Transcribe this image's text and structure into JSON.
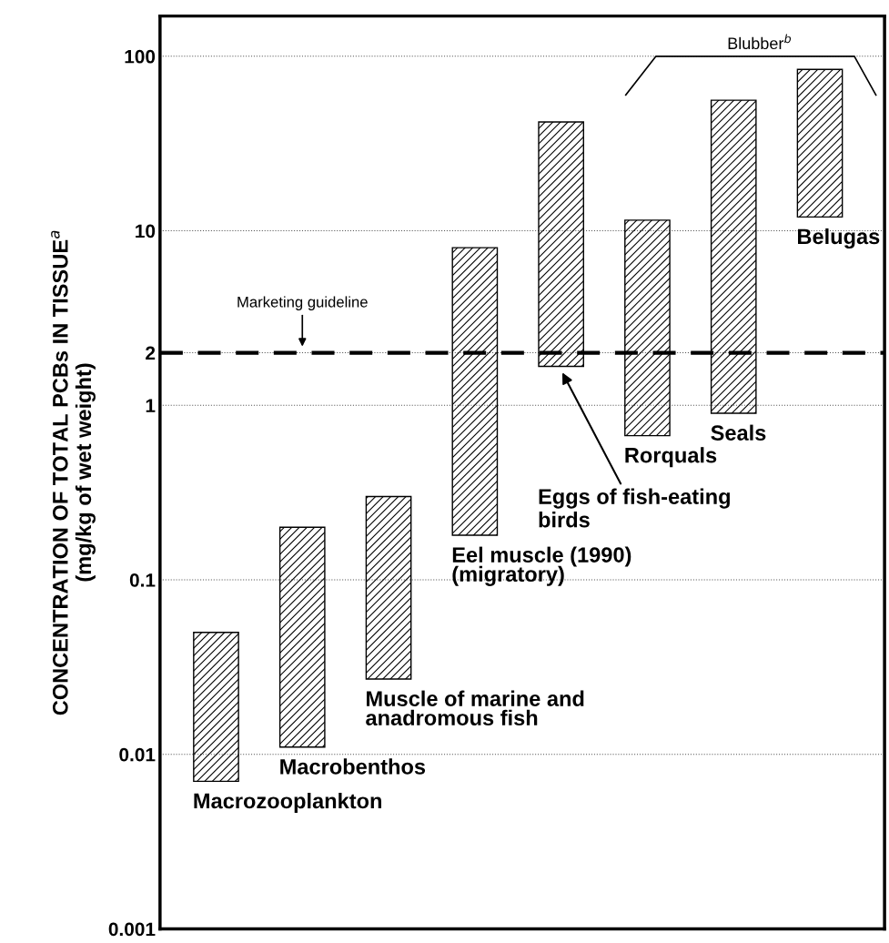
{
  "chart_data": {
    "type": "bar",
    "ylabel": "CONCENTRATION OF TOTAL PCBs IN TISSUE$^{a}$\n(mg/kg of wet weight)",
    "categories": [
      null,
      null,
      null,
      null,
      null,
      null,
      null,
      null
    ],
    "base": [
      0.007,
      0.011,
      0.027,
      0.18,
      1.67,
      0.67,
      0.9,
      12
    ],
    "values": [
      0.043,
      0.189,
      0.273,
      7.82,
      40.33,
      10.83,
      55.1,
      72
    ],
    "color": "#000000",
    "log": true,
    "ylim": [
      0.001,
      170
    ],
    "yticks": [
      0.001,
      0.01,
      0.1,
      1,
      2,
      10,
      100
    ],
    "grid": "y",
    "ref_lines": [
      {
        "axis": "y",
        "value": 2,
        "label": "Marketing guideline",
        "line_style": "dashed",
        "color": "#000000"
      }
    ],
    "annotations": [
      "Macrozooplankton",
      "Macrobenthos",
      "Muscle of marine and\nanadromous fish",
      "Eel muscle (1990)\n(migratory)",
      "Eggs of fish-eating\nbirds",
      "Rorquals",
      "Seals",
      "Belugas",
      "Blubber$^{b}$"
    ],
    "tick_labels": "y"
  }
}
